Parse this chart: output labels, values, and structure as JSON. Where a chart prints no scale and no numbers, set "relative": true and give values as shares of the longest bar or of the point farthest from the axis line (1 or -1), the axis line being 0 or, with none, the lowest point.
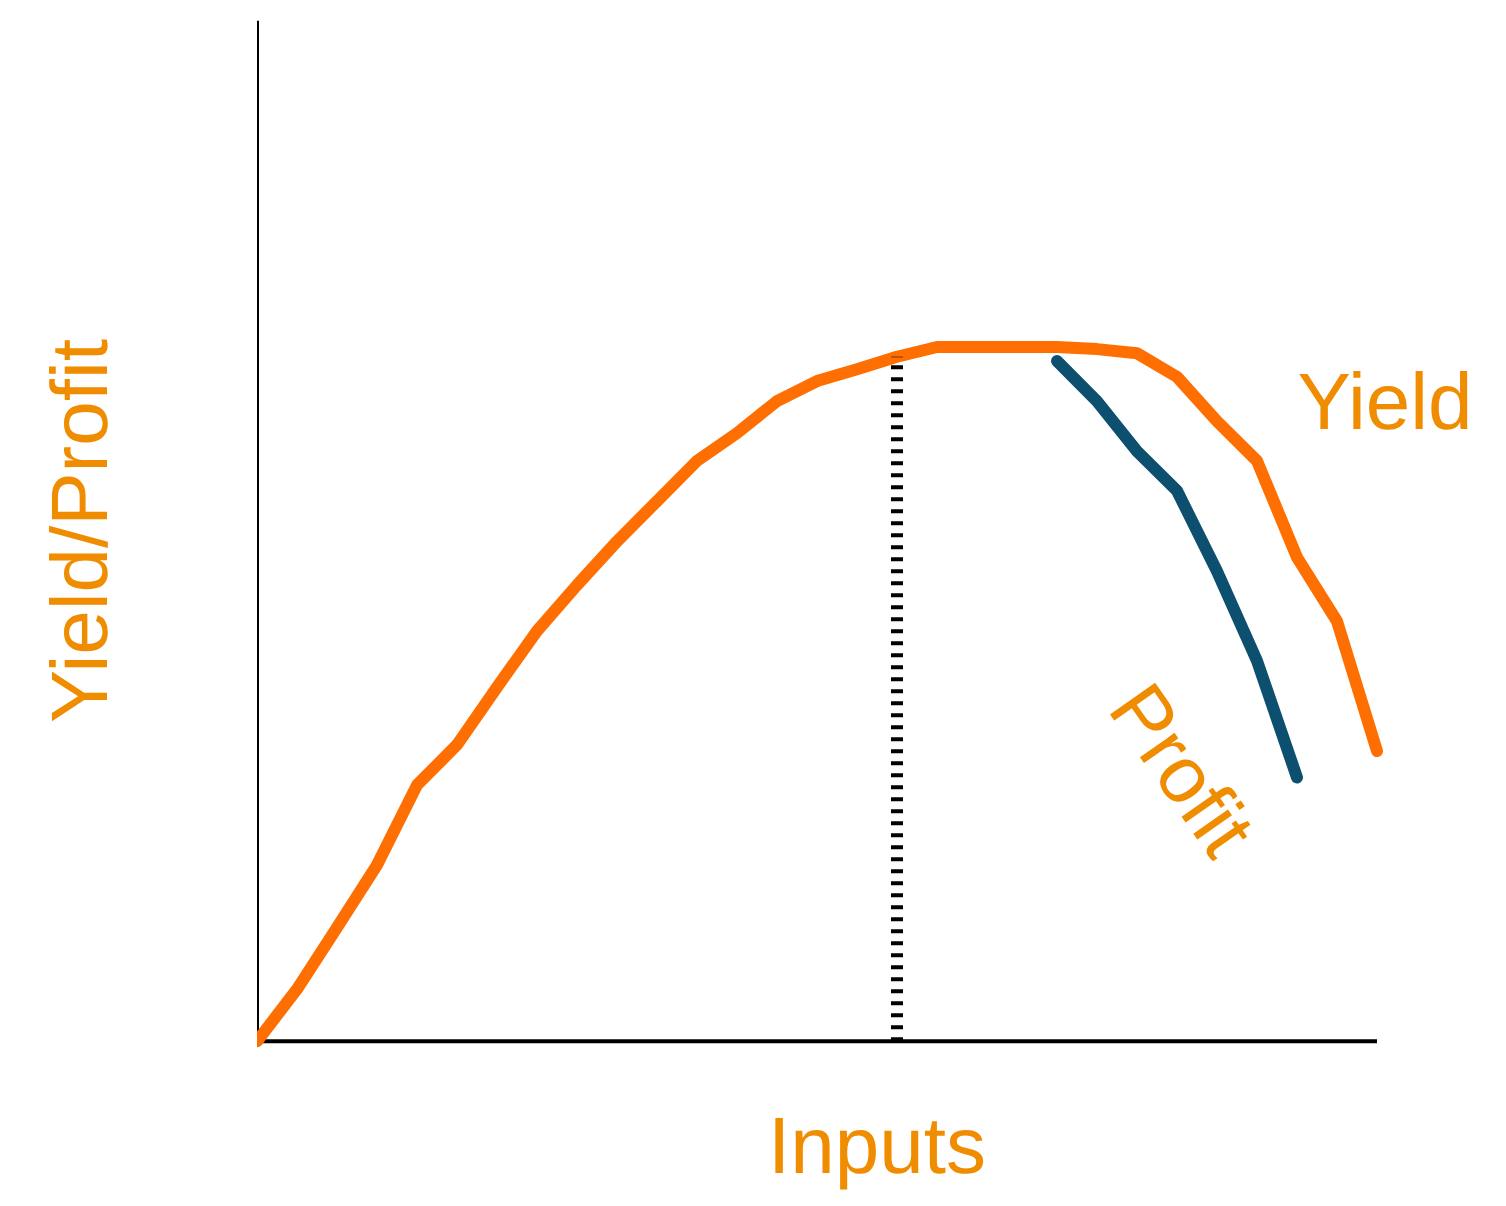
{
  "chart_data": {
    "type": "line",
    "relative": true,
    "xlabel": "Inputs",
    "ylabel": "Yield/Profit",
    "categories": [
      null,
      null,
      null,
      null,
      null,
      null,
      null,
      null,
      null,
      null,
      null,
      null,
      null,
      null,
      null,
      null,
      null,
      null,
      null,
      null,
      null,
      null,
      null,
      null,
      null,
      null,
      null,
      null,
      null
    ],
    "series": [
      {
        "name": "Yield",
        "color": "#ff6e00",
        "values": [
          0,
          0.075,
          0.164,
          0.254,
          0.369,
          0.427,
          0.51,
          0.591,
          0.657,
          0.72,
          0.778,
          0.836,
          0.876,
          0.922,
          0.951,
          0.968,
          0.986,
          1,
          1,
          1,
          1,
          0.997,
          0.991,
          0.957,
          0.893,
          0.836,
          0.697,
          0.605,
          0.418
        ]
      },
      {
        "name": "Profit",
        "color": "#0d4f6e",
        "values": [
          null,
          null,
          null,
          null,
          null,
          null,
          null,
          null,
          null,
          null,
          null,
          null,
          null,
          null,
          null,
          null,
          null,
          null,
          null,
          null,
          0.98,
          0.922,
          0.85,
          0.793,
          0.677,
          0.548,
          0.38,
          null,
          null
        ]
      }
    ],
    "grid": false,
    "marker": "none",
    "line_style": "solid"
  }
}
